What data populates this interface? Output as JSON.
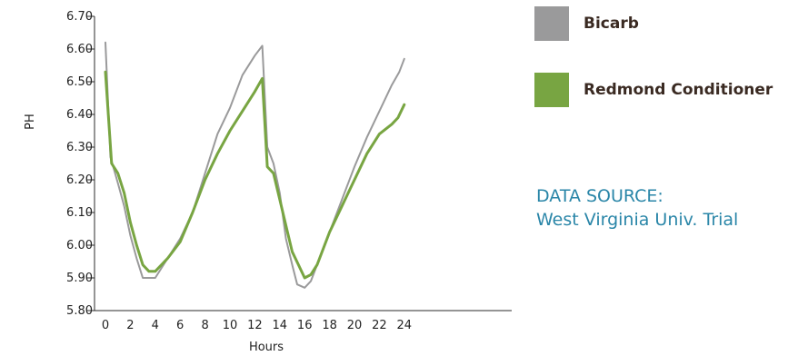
{
  "chart_data": {
    "type": "line",
    "xlabel": "Hours",
    "ylabel": "PH",
    "xlim": [
      0,
      24
    ],
    "ylim": [
      5.8,
      6.7
    ],
    "x_ticks": [
      0,
      2,
      4,
      6,
      8,
      10,
      12,
      14,
      16,
      18,
      20,
      22,
      24
    ],
    "y_ticks": [
      5.8,
      5.9,
      6.0,
      6.1,
      6.2,
      6.3,
      6.4,
      6.5,
      6.6,
      6.7
    ],
    "y_tick_labels": [
      "5.80",
      "5.90",
      "6.00",
      "6.10",
      "6.20",
      "6.30",
      "6.40",
      "6.50",
      "6.60",
      "6.70"
    ],
    "series": [
      {
        "name": "Bicarb",
        "color": "#9a9a9b",
        "points": [
          [
            0,
            6.62
          ],
          [
            0.4,
            6.27
          ],
          [
            1,
            6.19
          ],
          [
            1.5,
            6.12
          ],
          [
            2,
            6.03
          ],
          [
            2.5,
            5.96
          ],
          [
            3,
            5.9
          ],
          [
            3.5,
            5.9
          ],
          [
            4,
            5.9
          ],
          [
            5,
            5.96
          ],
          [
            6,
            6.02
          ],
          [
            7,
            6.1
          ],
          [
            8,
            6.22
          ],
          [
            9,
            6.34
          ],
          [
            10,
            6.42
          ],
          [
            11,
            6.52
          ],
          [
            12,
            6.58
          ],
          [
            12.6,
            6.61
          ],
          [
            13,
            6.3
          ],
          [
            13.5,
            6.25
          ],
          [
            14,
            6.16
          ],
          [
            14.5,
            6.02
          ],
          [
            15,
            5.94
          ],
          [
            15.4,
            5.88
          ],
          [
            16,
            5.87
          ],
          [
            16.5,
            5.89
          ],
          [
            17,
            5.94
          ],
          [
            18,
            6.04
          ],
          [
            19,
            6.14
          ],
          [
            20,
            6.24
          ],
          [
            21,
            6.33
          ],
          [
            22,
            6.41
          ],
          [
            23,
            6.49
          ],
          [
            23.6,
            6.53
          ],
          [
            24,
            6.57
          ]
        ]
      },
      {
        "name": "Redmond Conditioner",
        "color": "#78a542",
        "points": [
          [
            0,
            6.53
          ],
          [
            0.5,
            6.25
          ],
          [
            1,
            6.22
          ],
          [
            1.5,
            6.16
          ],
          [
            2,
            6.07
          ],
          [
            2.5,
            6.0
          ],
          [
            3,
            5.94
          ],
          [
            3.5,
            5.92
          ],
          [
            4,
            5.92
          ],
          [
            5,
            5.96
          ],
          [
            6,
            6.01
          ],
          [
            7,
            6.1
          ],
          [
            8,
            6.2
          ],
          [
            9,
            6.28
          ],
          [
            10,
            6.35
          ],
          [
            11,
            6.41
          ],
          [
            12,
            6.47
          ],
          [
            12.6,
            6.51
          ],
          [
            13,
            6.24
          ],
          [
            13.5,
            6.22
          ],
          [
            14,
            6.14
          ],
          [
            14.5,
            6.06
          ],
          [
            15,
            5.98
          ],
          [
            15.5,
            5.94
          ],
          [
            16,
            5.9
          ],
          [
            16.5,
            5.91
          ],
          [
            17,
            5.94
          ],
          [
            18,
            6.04
          ],
          [
            19,
            6.12
          ],
          [
            20,
            6.2
          ],
          [
            21,
            6.28
          ],
          [
            22,
            6.34
          ],
          [
            23,
            6.37
          ],
          [
            23.5,
            6.39
          ],
          [
            24,
            6.43
          ]
        ]
      }
    ]
  },
  "legend": {
    "items": [
      {
        "label": "Bicarb",
        "color": "#9a9a9b"
      },
      {
        "label": "Redmond Conditioner",
        "color": "#78a542"
      }
    ]
  },
  "source": {
    "line1": "DATA SOURCE:",
    "line2": "West Virginia Univ. Trial"
  }
}
